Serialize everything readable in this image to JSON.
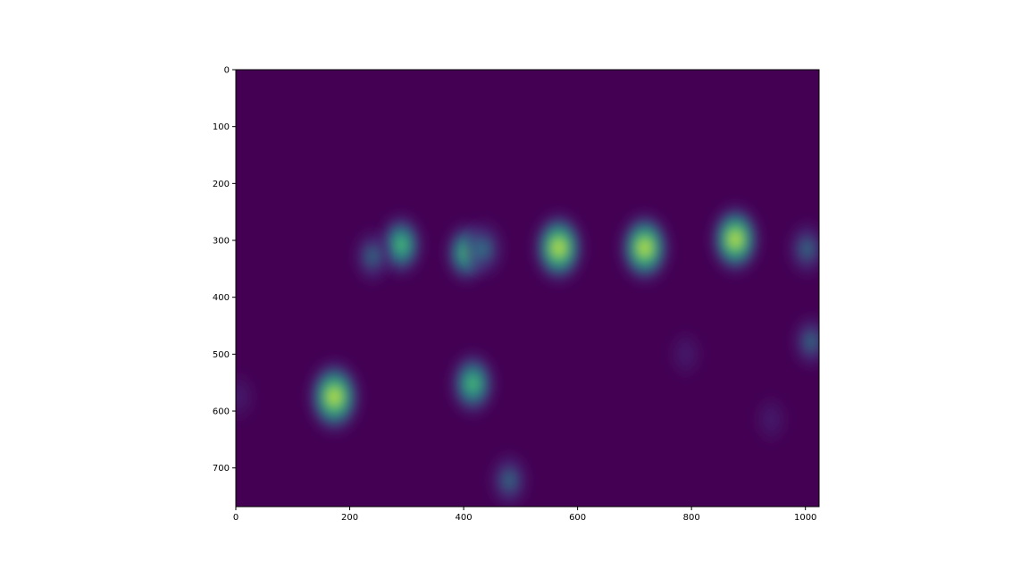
{
  "chart_data": {
    "type": "heatmap",
    "title": "",
    "xlabel": "",
    "ylabel": "",
    "colormap": "viridis",
    "xlim": [
      0,
      1024
    ],
    "ylim": [
      768,
      0
    ],
    "x_ticks": [
      0,
      200,
      400,
      600,
      800,
      1000
    ],
    "y_ticks": [
      0,
      100,
      200,
      300,
      400,
      500,
      600,
      700
    ],
    "grid": false,
    "colors": {
      "background": "#440154",
      "low": "#46337f",
      "mid": "#21918c",
      "high": "#5ec962",
      "peak": "#fde725"
    },
    "blobs": [
      {
        "x": 290,
        "y": 308,
        "value": 0.62
      },
      {
        "x": 240,
        "y": 328,
        "value": 0.32
      },
      {
        "x": 405,
        "y": 322,
        "value": 0.55
      },
      {
        "x": 435,
        "y": 315,
        "value": 0.48
      },
      {
        "x": 567,
        "y": 313,
        "value": 0.92
      },
      {
        "x": 718,
        "y": 313,
        "value": 0.92
      },
      {
        "x": 877,
        "y": 298,
        "value": 0.88
      },
      {
        "x": 1003,
        "y": 315,
        "value": 0.38
      },
      {
        "x": 173,
        "y": 575,
        "value": 1.0
      },
      {
        "x": 416,
        "y": 552,
        "value": 0.68
      },
      {
        "x": 480,
        "y": 722,
        "value": 0.38
      },
      {
        "x": 1010,
        "y": 478,
        "value": 0.32
      },
      {
        "x": 5,
        "y": 575,
        "value": 0.18
      },
      {
        "x": 790,
        "y": 500,
        "value": 0.12
      },
      {
        "x": 940,
        "y": 615,
        "value": 0.14
      }
    ]
  }
}
